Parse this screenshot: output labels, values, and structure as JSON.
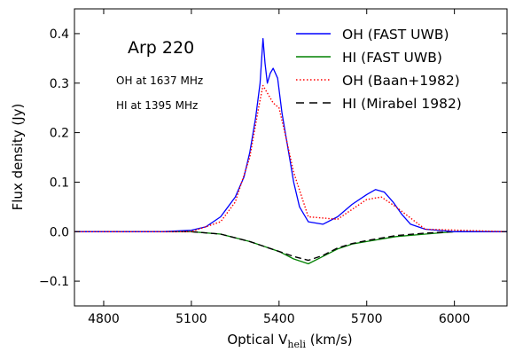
{
  "chart_data": {
    "type": "line",
    "xlabel": "Optical V",
    "xlabel_sub": "heli",
    "xlabel_unit": " (km/s)",
    "ylabel": "Flux density (Jy)",
    "xlim": [
      4700,
      6180
    ],
    "ylim": [
      -0.15,
      0.45
    ],
    "xticks": [
      4800,
      5100,
      5400,
      5700,
      6000
    ],
    "yticks": [
      -0.1,
      0.0,
      0.1,
      0.2,
      0.3,
      0.4
    ],
    "ytick_labels": [
      "−0.1",
      "0.0",
      "0.1",
      "0.2",
      "0.3",
      "0.4"
    ],
    "annotations": {
      "name": "Arp 220",
      "line1": "OH at 1637 MHz",
      "line2": "HI at 1395 MHz"
    },
    "legend_position": "top-right",
    "series": [
      {
        "name": "OH (FAST UWB)",
        "color": "#0000ff",
        "style": "solid",
        "x": [
          4700,
          4800,
          4900,
          5000,
          5100,
          5150,
          5200,
          5250,
          5280,
          5300,
          5320,
          5335,
          5345,
          5352,
          5360,
          5370,
          5380,
          5395,
          5410,
          5430,
          5450,
          5470,
          5500,
          5550,
          5600,
          5650,
          5700,
          5730,
          5760,
          5790,
          5820,
          5850,
          5900,
          6000,
          6100,
          6180
        ],
        "values": [
          0.0,
          0.0,
          0.0,
          0.0,
          0.003,
          0.01,
          0.03,
          0.07,
          0.11,
          0.16,
          0.23,
          0.3,
          0.39,
          0.34,
          0.3,
          0.32,
          0.33,
          0.31,
          0.24,
          0.17,
          0.1,
          0.05,
          0.02,
          0.015,
          0.03,
          0.055,
          0.075,
          0.085,
          0.08,
          0.06,
          0.035,
          0.015,
          0.005,
          0.0,
          0.0,
          0.0
        ]
      },
      {
        "name": "HI (FAST UWB)",
        "color": "#008000",
        "style": "solid",
        "x": [
          4700,
          4900,
          5100,
          5200,
          5300,
          5400,
          5450,
          5500,
          5550,
          5600,
          5650,
          5700,
          5800,
          5900,
          6000,
          6100,
          6180
        ],
        "values": [
          0.0,
          0.0,
          0.0,
          -0.005,
          -0.02,
          -0.04,
          -0.055,
          -0.065,
          -0.05,
          -0.035,
          -0.025,
          -0.02,
          -0.01,
          -0.005,
          0.0,
          0.0,
          0.0
        ]
      },
      {
        "name": "OH (Baan+1982)",
        "color": "#ff0000",
        "style": "dotted",
        "x": [
          4700,
          5100,
          5200,
          5250,
          5300,
          5330,
          5345,
          5360,
          5380,
          5400,
          5420,
          5450,
          5500,
          5600,
          5700,
          5750,
          5800,
          5900,
          6180
        ],
        "values": [
          0.0,
          0.0,
          0.02,
          0.06,
          0.15,
          0.25,
          0.295,
          0.28,
          0.26,
          0.25,
          0.2,
          0.12,
          0.03,
          0.025,
          0.065,
          0.07,
          0.05,
          0.005,
          0.0
        ]
      },
      {
        "name": "HI (Mirabel 1982)",
        "color": "#000000",
        "style": "dashed",
        "x": [
          4700,
          5100,
          5200,
          5300,
          5400,
          5450,
          5500,
          5550,
          5600,
          5650,
          5700,
          5800,
          5900,
          6000,
          6180
        ],
        "values": [
          0.0,
          0.0,
          -0.005,
          -0.02,
          -0.04,
          -0.05,
          -0.058,
          -0.048,
          -0.033,
          -0.024,
          -0.018,
          -0.008,
          -0.003,
          0.0,
          0.0
        ]
      }
    ]
  }
}
